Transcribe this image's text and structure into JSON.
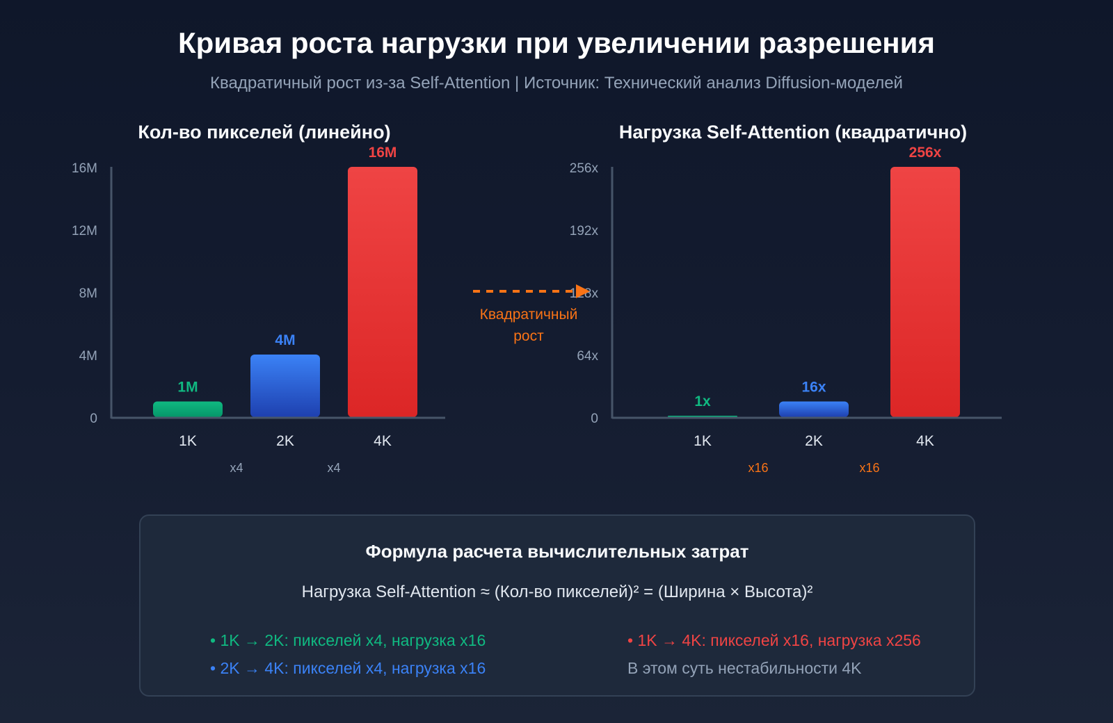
{
  "header": {
    "title": "Кривая роста нагрузки при увеличении разрешения",
    "subtitle": "Квадратичный рост из-за Self-Attention | Источник: Технический анализ Diffusion-моделей"
  },
  "colors": {
    "green": "#10b981",
    "blue": "#3b82f6",
    "red": "#ef4444",
    "orange": "#f97316",
    "axis": "#475569",
    "tick": "#94a3b8"
  },
  "chart_data": [
    {
      "type": "bar",
      "title": "Кол-во пикселей (линейно)",
      "categories": [
        "1K",
        "2K",
        "4K"
      ],
      "values": [
        1,
        4,
        16
      ],
      "data_labels": [
        "1M",
        "4M",
        "16M"
      ],
      "yticks": [
        0,
        4,
        8,
        12,
        16
      ],
      "ytick_labels": [
        "0",
        "4M",
        "8M",
        "12M",
        "16M"
      ],
      "ylim": [
        0,
        16
      ],
      "growth_labels": [
        "x4",
        "x4"
      ],
      "bar_colors": [
        "green",
        "blue",
        "red"
      ],
      "grid": false
    },
    {
      "type": "bar",
      "title": "Нагрузка Self-Attention (квадратично)",
      "categories": [
        "1K",
        "2K",
        "4K"
      ],
      "values": [
        1,
        16,
        256
      ],
      "data_labels": [
        "1x",
        "16x",
        "256x"
      ],
      "yticks": [
        0,
        64,
        128,
        192,
        256
      ],
      "ytick_labels": [
        "0",
        "64x",
        "128x",
        "192x",
        "256x"
      ],
      "ylim": [
        0,
        256
      ],
      "growth_labels": [
        "x16",
        "x16"
      ],
      "bar_colors": [
        "green",
        "blue",
        "red"
      ],
      "grid": false
    }
  ],
  "annotation": {
    "line1": "Квадратичный",
    "line2": "рост"
  },
  "formula_box": {
    "title": "Формула расчета вычислительных затрат",
    "formula": "Нагрузка Self-Attention ≈ (Кол-во пикселей)² = (Ширина × Высота)²",
    "notes": [
      "• 1K → 2K: пикселей x4, нагрузка x16",
      "• 2K → 4K: пикселей x4, нагрузка x16",
      "• 1K → 4K: пикселей x16, нагрузка x256",
      "В этом суть нестабильности 4K"
    ]
  }
}
